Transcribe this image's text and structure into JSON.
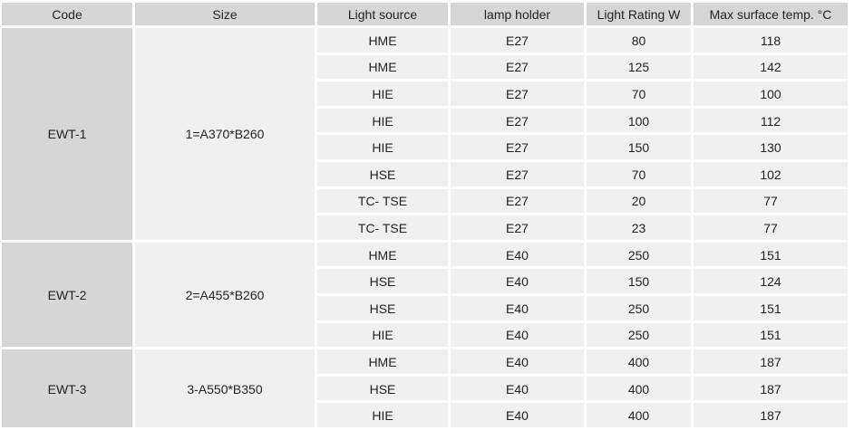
{
  "headers": [
    "Code",
    "Size",
    "Light source",
    "lamp holder",
    "Light Rating W",
    "Max surface temp. °C"
  ],
  "groups": [
    {
      "code": "EWT-1",
      "size": "1=A370*B260",
      "rows": [
        [
          "HME",
          "E27",
          "80",
          "118"
        ],
        [
          "HME",
          "E27",
          "125",
          "142"
        ],
        [
          "HIE",
          "E27",
          "70",
          "100"
        ],
        [
          "HIE",
          "E27",
          "100",
          "112"
        ],
        [
          "HIE",
          "E27",
          "150",
          "130"
        ],
        [
          "HSE",
          "E27",
          "70",
          "102"
        ],
        [
          "TC- TSE",
          "E27",
          "20",
          "77"
        ],
        [
          "TC- TSE",
          "E27",
          "23",
          "77"
        ]
      ]
    },
    {
      "code": "EWT-2",
      "size": "2=A455*B260",
      "rows": [
        [
          "HME",
          "E40",
          "250",
          "151"
        ],
        [
          "HSE",
          "E40",
          "150",
          "124"
        ],
        [
          "HSE",
          "E40",
          "250",
          "151"
        ],
        [
          "HIE",
          "E40",
          "250",
          "151"
        ]
      ]
    },
    {
      "code": "EWT-3",
      "size": "3-A550*B350",
      "rows": [
        [
          "HME",
          "E40",
          "400",
          "187"
        ],
        [
          "HSE",
          "E40",
          "400",
          "187"
        ],
        [
          "HIE",
          "E40",
          "400",
          "187"
        ]
      ]
    }
  ]
}
